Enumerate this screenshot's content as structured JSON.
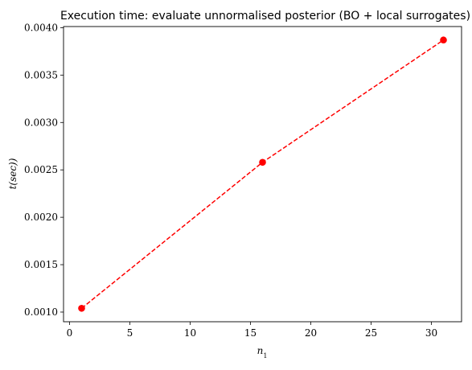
{
  "chart_data": {
    "type": "line",
    "title": "Execution time: evaluate unnormalised posterior (BO + local surrogates)",
    "xlabel": "n_1",
    "ylabel": "t(sec))",
    "x": [
      1,
      16,
      31
    ],
    "series": [
      {
        "values": [
          0.00104,
          0.00258,
          0.00387
        ],
        "color": "#ff0000",
        "line_style": "dashed",
        "marker": "circle"
      }
    ],
    "xlim": [
      -0.5,
      32.5
    ],
    "ylim": [
      0.000898,
      0.004012
    ],
    "xticks": [
      0,
      5,
      10,
      15,
      20,
      25,
      30
    ],
    "xtick_labels": [
      "0",
      "5",
      "10",
      "15",
      "20",
      "25",
      "30"
    ],
    "yticks": [
      0.001,
      0.0015,
      0.002,
      0.0025,
      0.003,
      0.0035,
      0.004
    ],
    "ytick_labels": [
      "0.0010",
      "0.0015",
      "0.0020",
      "0.0025",
      "0.0030",
      "0.0035",
      "0.0040"
    ],
    "grid": false,
    "legend": "none"
  }
}
